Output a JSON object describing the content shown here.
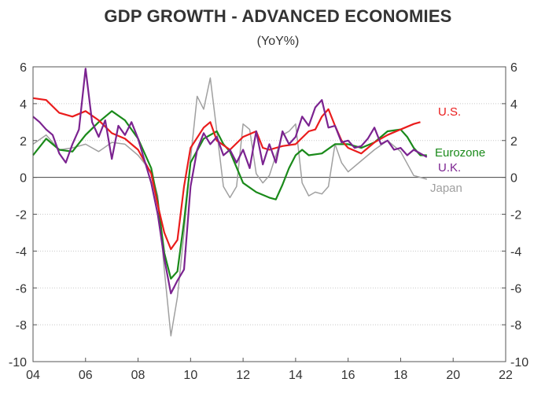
{
  "chart_data": {
    "type": "line",
    "title": "GDP GROWTH - ADVANCED ECONOMIES",
    "subtitle": "(YoY%)",
    "xlabel": "",
    "ylabel": "",
    "xlim": [
      2004,
      2022
    ],
    "ylim": [
      -10,
      6
    ],
    "grid": true,
    "x_ticks": [
      2004,
      2006,
      2008,
      2010,
      2012,
      2014,
      2016,
      2018,
      2020,
      2022
    ],
    "x_tick_labels": [
      "04",
      "06",
      "08",
      "10",
      "12",
      "14",
      "16",
      "18",
      "20",
      "22"
    ],
    "y_ticks": [
      6,
      4,
      2,
      0,
      -2,
      -4,
      -6,
      -8,
      -10
    ],
    "y_tick_labels": [
      "6",
      "4",
      "2",
      "0",
      "-2",
      "-4",
      "-6",
      "-8",
      "-10"
    ],
    "series": [
      {
        "name": "Japan",
        "color": "#a0a0a0",
        "points": [
          [
            2004.0,
            1.8
          ],
          [
            2004.5,
            2.3
          ],
          [
            2005.0,
            1.5
          ],
          [
            2005.5,
            1.6
          ],
          [
            2006.0,
            1.8
          ],
          [
            2006.5,
            1.4
          ],
          [
            2007.0,
            1.9
          ],
          [
            2007.5,
            1.8
          ],
          [
            2008.0,
            1.2
          ],
          [
            2008.5,
            0.3
          ],
          [
            2008.75,
            -1.0
          ],
          [
            2009.0,
            -5.0
          ],
          [
            2009.25,
            -8.6
          ],
          [
            2009.5,
            -6.5
          ],
          [
            2009.75,
            -3.0
          ],
          [
            2010.0,
            1.0
          ],
          [
            2010.25,
            4.4
          ],
          [
            2010.5,
            3.7
          ],
          [
            2010.75,
            5.4
          ],
          [
            2011.0,
            2.5
          ],
          [
            2011.25,
            -0.5
          ],
          [
            2011.5,
            -1.1
          ],
          [
            2011.75,
            -0.5
          ],
          [
            2012.0,
            2.9
          ],
          [
            2012.25,
            2.6
          ],
          [
            2012.5,
            0.2
          ],
          [
            2012.75,
            -0.3
          ],
          [
            2013.0,
            0.1
          ],
          [
            2013.5,
            2.3
          ],
          [
            2013.75,
            2.5
          ],
          [
            2014.0,
            2.9
          ],
          [
            2014.25,
            -0.3
          ],
          [
            2014.5,
            -1.0
          ],
          [
            2014.75,
            -0.8
          ],
          [
            2015.0,
            -0.9
          ],
          [
            2015.25,
            -0.5
          ],
          [
            2015.5,
            1.8
          ],
          [
            2015.75,
            0.8
          ],
          [
            2016.0,
            0.3
          ],
          [
            2016.5,
            0.9
          ],
          [
            2017.0,
            1.5
          ],
          [
            2017.5,
            2.0
          ],
          [
            2018.0,
            1.4
          ],
          [
            2018.5,
            0.1
          ],
          [
            2018.75,
            0.0
          ],
          [
            2019.0,
            -0.1
          ]
        ]
      },
      {
        "name": "Eurozone",
        "color": "#1a8a1a",
        "points": [
          [
            2004.0,
            1.2
          ],
          [
            2004.5,
            2.1
          ],
          [
            2005.0,
            1.5
          ],
          [
            2005.5,
            1.4
          ],
          [
            2006.0,
            2.3
          ],
          [
            2006.5,
            3.0
          ],
          [
            2007.0,
            3.6
          ],
          [
            2007.5,
            3.1
          ],
          [
            2008.0,
            2.1
          ],
          [
            2008.5,
            0.5
          ],
          [
            2008.75,
            -1.3
          ],
          [
            2009.0,
            -4.1
          ],
          [
            2009.25,
            -5.5
          ],
          [
            2009.5,
            -5.1
          ],
          [
            2009.75,
            -2.4
          ],
          [
            2010.0,
            0.8
          ],
          [
            2010.5,
            2.1
          ],
          [
            2011.0,
            2.5
          ],
          [
            2011.25,
            1.8
          ],
          [
            2011.5,
            1.4
          ],
          [
            2012.0,
            -0.3
          ],
          [
            2012.5,
            -0.8
          ],
          [
            2013.0,
            -1.1
          ],
          [
            2013.25,
            -1.2
          ],
          [
            2013.5,
            -0.4
          ],
          [
            2013.75,
            0.5
          ],
          [
            2014.0,
            1.2
          ],
          [
            2014.25,
            1.5
          ],
          [
            2014.5,
            1.2
          ],
          [
            2015.0,
            1.3
          ],
          [
            2015.5,
            1.8
          ],
          [
            2016.0,
            1.8
          ],
          [
            2016.5,
            1.6
          ],
          [
            2017.0,
            1.9
          ],
          [
            2017.5,
            2.5
          ],
          [
            2018.0,
            2.6
          ],
          [
            2018.25,
            2.2
          ],
          [
            2018.5,
            1.6
          ],
          [
            2018.75,
            1.2
          ],
          [
            2019.0,
            1.2
          ]
        ]
      },
      {
        "name": "U.S.",
        "color": "#ea1c1c",
        "points": [
          [
            2004.0,
            4.3
          ],
          [
            2004.5,
            4.2
          ],
          [
            2005.0,
            3.5
          ],
          [
            2005.5,
            3.3
          ],
          [
            2006.0,
            3.6
          ],
          [
            2006.5,
            3.1
          ],
          [
            2007.0,
            2.4
          ],
          [
            2007.5,
            2.1
          ],
          [
            2008.0,
            1.5
          ],
          [
            2008.5,
            0.2
          ],
          [
            2008.75,
            -1.5
          ],
          [
            2009.0,
            -3.0
          ],
          [
            2009.25,
            -3.9
          ],
          [
            2009.5,
            -3.4
          ],
          [
            2009.75,
            -0.5
          ],
          [
            2010.0,
            1.6
          ],
          [
            2010.5,
            2.7
          ],
          [
            2010.75,
            3.0
          ],
          [
            2011.0,
            2.0
          ],
          [
            2011.5,
            1.5
          ],
          [
            2012.0,
            2.2
          ],
          [
            2012.5,
            2.5
          ],
          [
            2012.75,
            1.6
          ],
          [
            2013.0,
            1.5
          ],
          [
            2013.5,
            1.7
          ],
          [
            2014.0,
            1.8
          ],
          [
            2014.5,
            2.5
          ],
          [
            2014.75,
            2.6
          ],
          [
            2015.0,
            3.3
          ],
          [
            2015.25,
            3.7
          ],
          [
            2015.5,
            2.8
          ],
          [
            2015.75,
            2.0
          ],
          [
            2016.0,
            1.6
          ],
          [
            2016.5,
            1.3
          ],
          [
            2017.0,
            1.9
          ],
          [
            2017.5,
            2.3
          ],
          [
            2018.0,
            2.6
          ],
          [
            2018.5,
            2.9
          ],
          [
            2018.75,
            3.0
          ]
        ]
      },
      {
        "name": "U.K.",
        "color": "#7b2390",
        "points": [
          [
            2004.0,
            3.3
          ],
          [
            2004.25,
            3.0
          ],
          [
            2004.5,
            2.6
          ],
          [
            2004.75,
            2.3
          ],
          [
            2005.0,
            1.3
          ],
          [
            2005.25,
            0.8
          ],
          [
            2005.5,
            1.8
          ],
          [
            2005.75,
            2.6
          ],
          [
            2006.0,
            5.9
          ],
          [
            2006.25,
            3.0
          ],
          [
            2006.5,
            2.2
          ],
          [
            2006.75,
            3.1
          ],
          [
            2007.0,
            1.0
          ],
          [
            2007.25,
            2.8
          ],
          [
            2007.5,
            2.3
          ],
          [
            2007.75,
            3.0
          ],
          [
            2008.0,
            2.1
          ],
          [
            2008.25,
            0.9
          ],
          [
            2008.5,
            -0.3
          ],
          [
            2008.75,
            -2.0
          ],
          [
            2009.0,
            -4.4
          ],
          [
            2009.25,
            -6.3
          ],
          [
            2009.5,
            -5.6
          ],
          [
            2009.75,
            -5.0
          ],
          [
            2010.0,
            -0.5
          ],
          [
            2010.25,
            1.5
          ],
          [
            2010.5,
            2.4
          ],
          [
            2010.75,
            1.8
          ],
          [
            2011.0,
            2.2
          ],
          [
            2011.25,
            1.2
          ],
          [
            2011.5,
            1.5
          ],
          [
            2011.75,
            0.8
          ],
          [
            2012.0,
            1.5
          ],
          [
            2012.25,
            0.5
          ],
          [
            2012.5,
            2.5
          ],
          [
            2012.75,
            0.7
          ],
          [
            2013.0,
            1.8
          ],
          [
            2013.25,
            0.8
          ],
          [
            2013.5,
            2.5
          ],
          [
            2013.75,
            1.8
          ],
          [
            2014.0,
            2.2
          ],
          [
            2014.25,
            3.3
          ],
          [
            2014.5,
            2.8
          ],
          [
            2014.75,
            3.8
          ],
          [
            2015.0,
            4.2
          ],
          [
            2015.25,
            2.7
          ],
          [
            2015.5,
            2.8
          ],
          [
            2015.75,
            1.9
          ],
          [
            2016.0,
            2.0
          ],
          [
            2016.25,
            1.6
          ],
          [
            2016.5,
            1.7
          ],
          [
            2016.75,
            2.1
          ],
          [
            2017.0,
            2.7
          ],
          [
            2017.25,
            1.8
          ],
          [
            2017.5,
            2.0
          ],
          [
            2017.75,
            1.5
          ],
          [
            2018.0,
            1.6
          ],
          [
            2018.25,
            1.2
          ],
          [
            2018.5,
            1.5
          ],
          [
            2018.75,
            1.3
          ],
          [
            2019.0,
            1.1
          ]
        ]
      }
    ],
    "annotations": [
      {
        "series": "U.S.",
        "text": "U.S."
      },
      {
        "series": "Eurozone",
        "text": "Eurozone"
      },
      {
        "series": "U.K.",
        "text": "U.K."
      },
      {
        "series": "Japan",
        "text": "Japan"
      }
    ]
  }
}
